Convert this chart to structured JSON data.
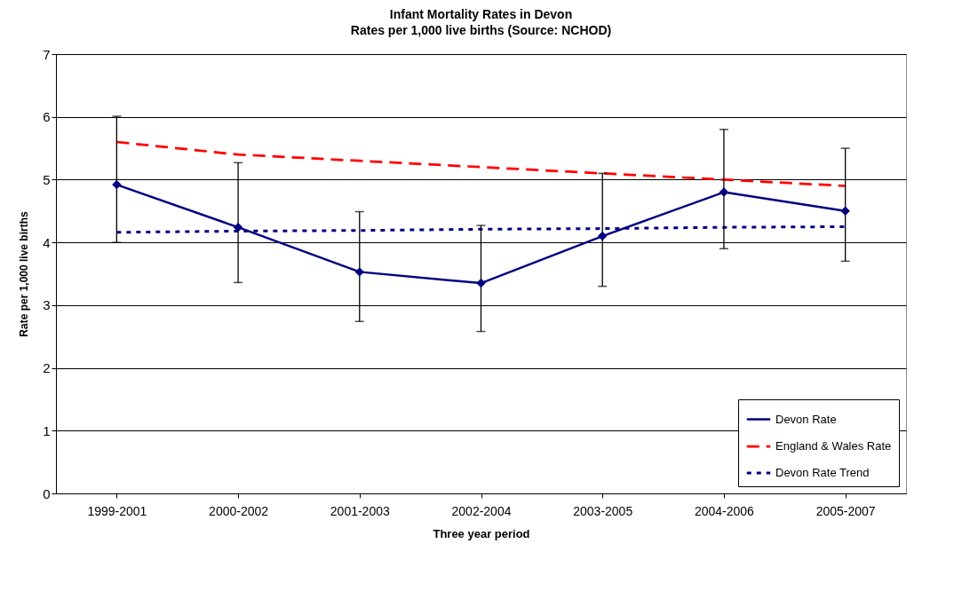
{
  "chart_data": {
    "type": "line",
    "title": "Infant Mortality Rates in Devon",
    "subtitle": "Rates per 1,000 live births (Source: NCHOD)",
    "xlabel": "Three year period",
    "ylabel": "Rate per 1,000 live births",
    "categories": [
      "1999-2001",
      "2000-2002",
      "2001-2003",
      "2002-2004",
      "2003-2005",
      "2004-2006",
      "2005-2007"
    ],
    "series": [
      {
        "name": "Devon Rate",
        "color": "#000080",
        "values": [
          4.92,
          4.24,
          3.53,
          3.35,
          4.1,
          4.8,
          4.5
        ],
        "marker": "diamond",
        "line_style": "solid",
        "errors": [
          [
            4.0,
            6.01
          ],
          [
            3.36,
            5.27
          ],
          [
            2.74,
            4.49
          ],
          [
            2.58,
            4.27
          ],
          [
            3.3,
            5.1
          ],
          [
            3.9,
            5.8
          ],
          [
            3.7,
            5.5
          ]
        ]
      },
      {
        "name": "England & Wales Rate",
        "color": "#ff0000",
        "values": [
          5.6,
          5.4,
          5.3,
          5.2,
          5.1,
          5.0,
          4.9
        ],
        "marker": "none",
        "line_style": "dashed"
      },
      {
        "name": "Devon Rate Trend",
        "color": "#000080",
        "values": [
          4.16,
          4.18,
          4.19,
          4.21,
          4.22,
          4.24,
          4.25
        ],
        "marker": "none",
        "line_style": "dotted"
      }
    ],
    "ylim": [
      0,
      7
    ],
    "yticks": [
      0,
      1,
      2,
      3,
      4,
      5,
      6,
      7
    ],
    "grid": "y",
    "legend": "bottom right"
  }
}
